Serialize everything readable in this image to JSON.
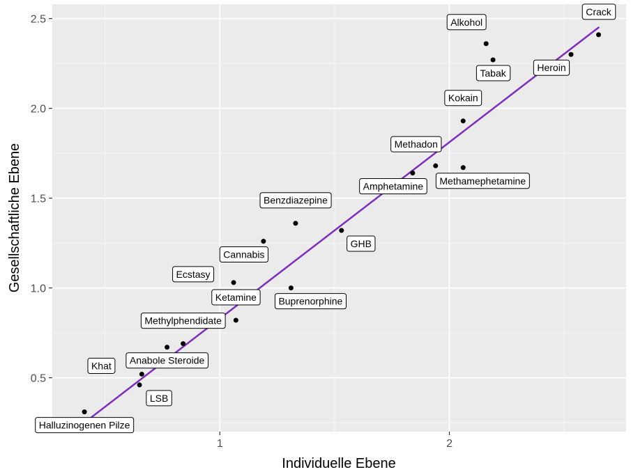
{
  "chart_data": {
    "type": "scatter",
    "xlabel": "Individuelle Ebene",
    "ylabel": "Gesellschaftliche Ebene",
    "xlim": [
      0.27,
      2.77
    ],
    "ylim": [
      0.2,
      2.58
    ],
    "x_ticks": [
      1,
      2
    ],
    "y_ticks": [
      0.5,
      1.0,
      1.5,
      2.0,
      2.5
    ],
    "x_tick_labels": [
      "1",
      "2"
    ],
    "y_tick_labels": [
      "0.5",
      "1.0",
      "1.5",
      "2.0",
      "2.5"
    ],
    "grid": true,
    "legend": "none",
    "colors": {
      "panel_background": "#ebebeb",
      "grid": "#ffffff",
      "points": "#000000",
      "trend_line": "#7b2cbf"
    },
    "points": [
      {
        "label": "Halluzinogenen Pilze",
        "x": 0.41,
        "y": 0.31,
        "label_position": "below"
      },
      {
        "label": "LSB",
        "x": 0.65,
        "y": 0.46,
        "label_position": "below-right"
      },
      {
        "label": "Khat",
        "x": 0.66,
        "y": 0.52,
        "label_position": "left"
      },
      {
        "label": "Anabole Steroide",
        "x": 0.77,
        "y": 0.67,
        "label_position": "below"
      },
      {
        "label": "Methylphendidate",
        "x": 0.84,
        "y": 0.69,
        "label_position": "above"
      },
      {
        "label": "Ketamine",
        "x": 1.07,
        "y": 0.82,
        "label_position": "above"
      },
      {
        "label": "Ecstasy",
        "x": 1.06,
        "y": 1.03,
        "label_position": "left"
      },
      {
        "label": "Buprenorphine",
        "x": 1.31,
        "y": 1.0,
        "label_position": "below-right"
      },
      {
        "label": "Cannabis",
        "x": 1.19,
        "y": 1.26,
        "label_position": "below-left"
      },
      {
        "label": "Benzdiazepine",
        "x": 1.33,
        "y": 1.36,
        "label_position": "above"
      },
      {
        "label": "GHB",
        "x": 1.53,
        "y": 1.32,
        "label_position": "below-right"
      },
      {
        "label": "Amphetamine",
        "x": 1.84,
        "y": 1.64,
        "label_position": "below-left"
      },
      {
        "label": "Methadon",
        "x": 1.94,
        "y": 1.68,
        "label_position": "above-left"
      },
      {
        "label": "Methamephetamine",
        "x": 2.06,
        "y": 1.67,
        "label_position": "below-right"
      },
      {
        "label": "Kokain",
        "x": 2.06,
        "y": 1.93,
        "label_position": "above"
      },
      {
        "label": "Tabak",
        "x": 2.19,
        "y": 2.27,
        "label_position": "below"
      },
      {
        "label": "Alkohol",
        "x": 2.16,
        "y": 2.36,
        "label_position": "above-left"
      },
      {
        "label": "Heroin",
        "x": 2.53,
        "y": 2.3,
        "label_position": "below-left"
      },
      {
        "label": "Crack",
        "x": 2.65,
        "y": 2.41,
        "label_position": "above"
      }
    ],
    "trend_line": {
      "x": [
        0.41,
        2.65
      ],
      "y": [
        0.25,
        2.45
      ]
    }
  }
}
